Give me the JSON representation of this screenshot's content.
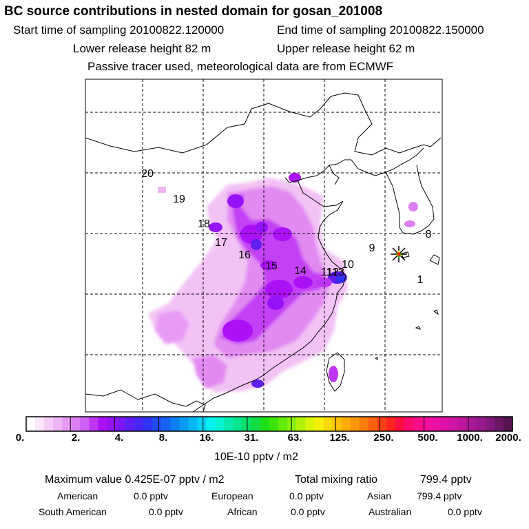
{
  "header": {
    "title": "BC  source contributions in nested domain for gosan_201008",
    "start_label": "Start time of sampling 20100822.120000",
    "end_label": "End time of sampling 20100822.150000",
    "lower_label": "Lower release height   82 m",
    "upper_label": "Upper release height   62 m",
    "note": "Passive tracer used, meteorological data are from ECMWF"
  },
  "map": {
    "region_labels": [
      "1",
      "8",
      "9",
      "10",
      "11",
      "12",
      "13",
      "14",
      "15",
      "16",
      "17",
      "18",
      "19",
      "20"
    ],
    "receptor_marker": "gosan-station-star",
    "plume_color": "#a000ff"
  },
  "colorbar": {
    "tick_labels": [
      "0.",
      "2.",
      "4.",
      "8.",
      "16.",
      "31.",
      "63.",
      "125.",
      "250.",
      "500.",
      "1000.",
      "2000."
    ],
    "colors": [
      "#ffffff",
      "#fbe6fb",
      "#f6cdf8",
      "#f0b4f6",
      "#e89bf5",
      "#dd7ff4",
      "#cf5ff5",
      "#bf35f6",
      "#ac10f7",
      "#9412f5",
      "#7a17f2",
      "#5e1ef0",
      "#4626f1",
      "#2f34f3",
      "#1f4cf4",
      "#1563f4",
      "#0c7ff5",
      "#0a9bf6",
      "#08b8f6",
      "#07d3f5",
      "#06f0f0",
      "#05f3d2",
      "#05ecae",
      "#07e58c",
      "#0bdf68",
      "#13db43",
      "#1fe018",
      "#3ae60a",
      "#63ea08",
      "#89ee07",
      "#b2f207",
      "#d8f507",
      "#f5f009",
      "#f9d908",
      "#fbc307",
      "#fcac08",
      "#fd9509",
      "#fe7d0a",
      "#ff600e",
      "#ff4214",
      "#ff2420",
      "#ff0c42",
      "#fe0a6d",
      "#fb0c8b",
      "#f50f9d",
      "#ea11a4",
      "#dc12a6",
      "#cd14a4",
      "#bc169d",
      "#aa1896",
      "#97198b",
      "#82197b",
      "#6b1766",
      "#55134f"
    ],
    "unit": "10E-10 pptv / m2"
  },
  "stats": {
    "maximum": "Maximum value  0.425E-07 pptv / m2",
    "total": "Total mixing ratio",
    "total_value": "799.4 pptv",
    "american_label": "American",
    "american_value": "0.0 pptv",
    "european_label": "European",
    "european_value": "0.0 pptv",
    "asian_label": "Asian",
    "asian_value": "799.4 pptv",
    "south_american_label": "South American",
    "south_american_value": "0.0 pptv",
    "african_label": "African",
    "african_value": "0.0 pptv",
    "australian_label": "Australian",
    "australian_value": "0.0 pptv"
  }
}
